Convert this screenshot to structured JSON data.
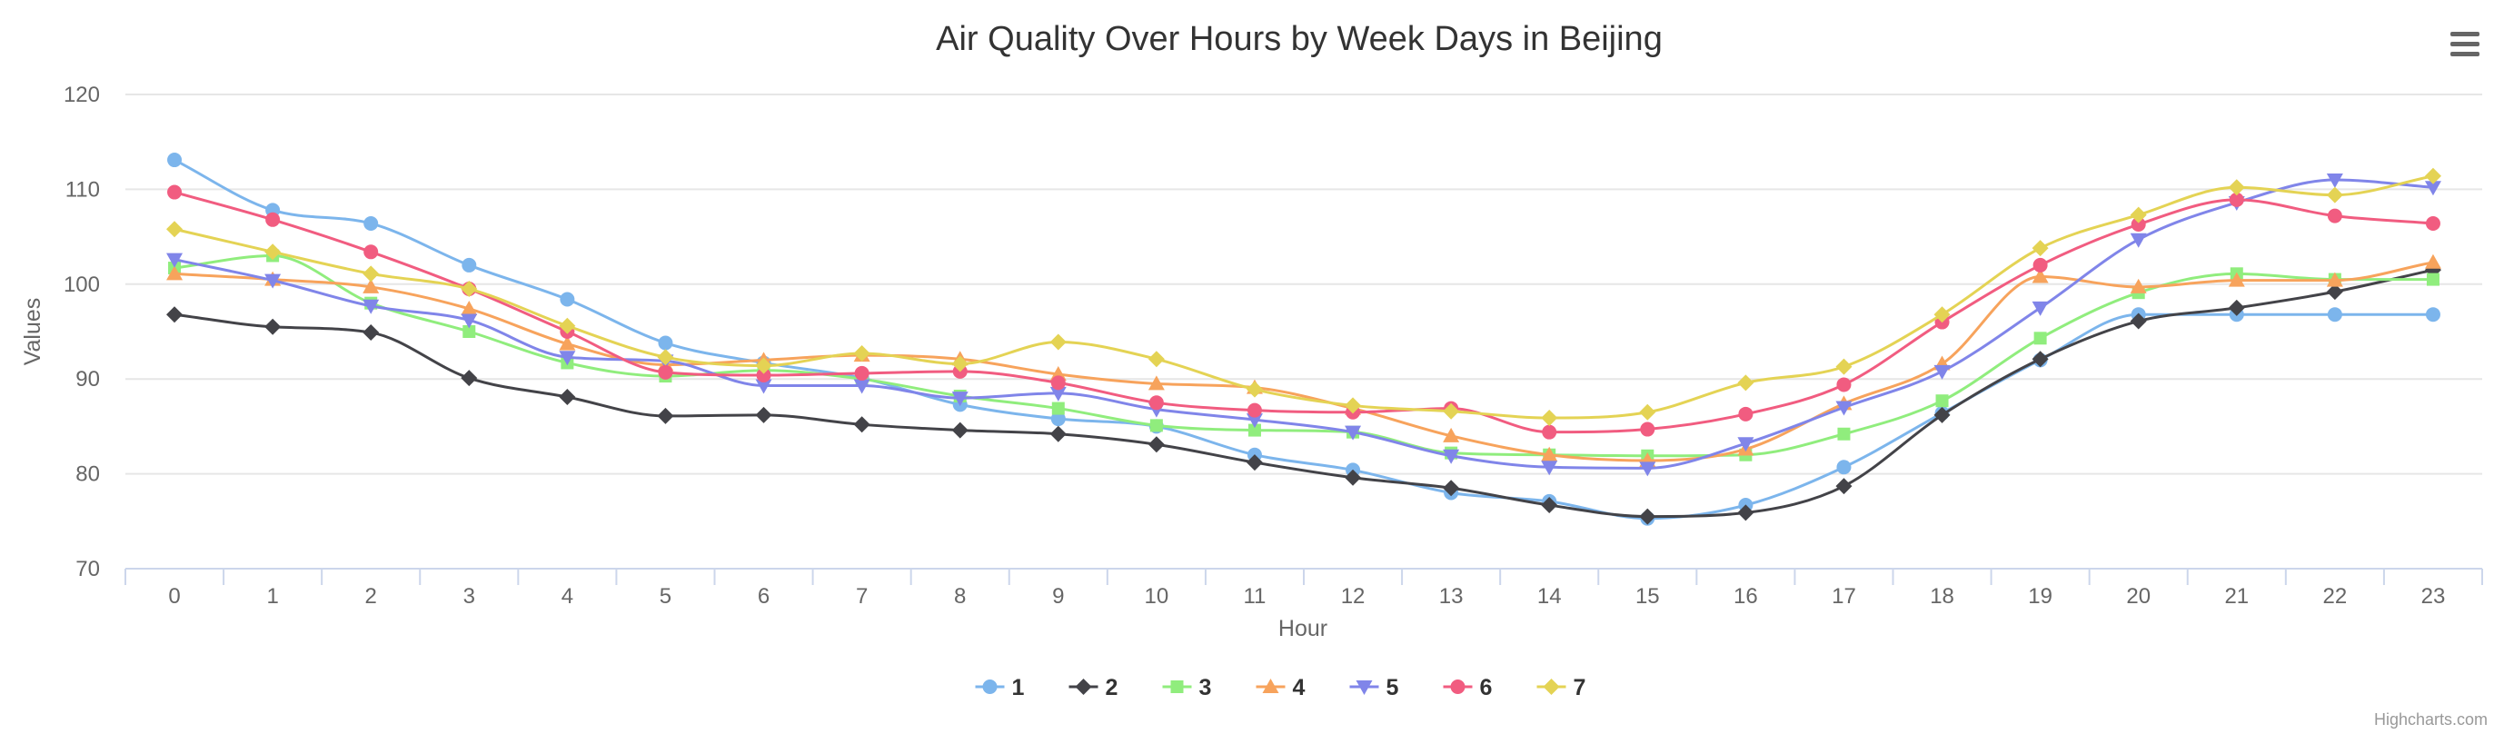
{
  "chart_data": {
    "type": "line",
    "title": "Air Quality Over Hours by Week Days in Beijing",
    "xlabel": "Hour",
    "ylabel": "Values",
    "ylim": [
      70,
      120
    ],
    "yticks": [
      70,
      80,
      90,
      100,
      110,
      120
    ],
    "categories": [
      "0",
      "1",
      "2",
      "3",
      "4",
      "5",
      "6",
      "7",
      "8",
      "9",
      "10",
      "11",
      "12",
      "13",
      "14",
      "15",
      "16",
      "17",
      "18",
      "19",
      "20",
      "21",
      "22",
      "23"
    ],
    "grid": true,
    "legend_position": "bottom-center",
    "credits": "Highcharts.com",
    "series": [
      {
        "name": "1",
        "color": "#7cb5ec",
        "marker": "circle",
        "values": [
          113.1,
          107.8,
          106.4,
          102.0,
          98.4,
          93.8,
          91.7,
          90.1,
          87.3,
          85.8,
          85.0,
          82.0,
          80.4,
          78.0,
          77.1,
          75.3,
          76.7,
          80.7,
          86.4,
          92.0,
          96.8,
          96.8,
          96.8,
          96.8
        ]
      },
      {
        "name": "2",
        "color": "#434348",
        "marker": "diamond",
        "values": [
          96.8,
          95.5,
          94.9,
          90.1,
          88.1,
          86.1,
          86.2,
          85.2,
          84.6,
          84.2,
          83.1,
          81.2,
          79.6,
          78.5,
          76.7,
          75.5,
          75.9,
          78.7,
          86.2,
          92.1,
          96.1,
          97.5,
          99.2,
          101.5
        ]
      },
      {
        "name": "3",
        "color": "#90ed7d",
        "marker": "square",
        "values": [
          101.7,
          103.0,
          98.0,
          95.0,
          91.7,
          90.3,
          90.9,
          90.0,
          88.2,
          86.9,
          85.1,
          84.6,
          84.4,
          82.2,
          82.0,
          81.9,
          82.0,
          84.2,
          87.7,
          94.3,
          99.1,
          101.1,
          100.5,
          100.5
        ]
      },
      {
        "name": "4",
        "color": "#f7a35c",
        "marker": "triangle",
        "values": [
          101.1,
          100.5,
          99.7,
          97.4,
          93.7,
          91.5,
          92.0,
          92.5,
          92.1,
          90.5,
          89.5,
          89.1,
          86.9,
          84.0,
          82.0,
          81.4,
          82.6,
          87.4,
          91.6,
          100.8,
          99.7,
          100.4,
          100.4,
          102.3
        ]
      },
      {
        "name": "5",
        "color": "#8085e9",
        "marker": "triangle-down",
        "values": [
          102.6,
          100.4,
          97.7,
          96.2,
          92.3,
          91.9,
          89.3,
          89.3,
          88.0,
          88.5,
          86.8,
          85.7,
          84.4,
          81.9,
          80.7,
          80.6,
          83.2,
          87.0,
          90.8,
          97.5,
          104.7,
          108.6,
          111.0,
          110.2
        ]
      },
      {
        "name": "6",
        "color": "#f15c80",
        "marker": "circle",
        "values": [
          109.7,
          106.8,
          103.4,
          99.5,
          95.0,
          90.7,
          90.4,
          90.6,
          90.8,
          89.6,
          87.5,
          86.7,
          86.5,
          86.9,
          84.4,
          84.7,
          86.3,
          89.4,
          96.0,
          102.0,
          106.3,
          108.9,
          107.2,
          106.4
        ]
      },
      {
        "name": "7",
        "color": "#e4d354",
        "marker": "diamond",
        "values": [
          105.8,
          103.4,
          101.1,
          99.5,
          95.6,
          92.3,
          91.4,
          92.7,
          91.6,
          93.9,
          92.1,
          88.9,
          87.2,
          86.6,
          85.9,
          86.5,
          89.6,
          91.3,
          96.8,
          103.8,
          107.3,
          110.2,
          109.4,
          111.4
        ]
      }
    ]
  },
  "toolbar": {
    "menu_icon": "hamburger-menu-icon"
  }
}
